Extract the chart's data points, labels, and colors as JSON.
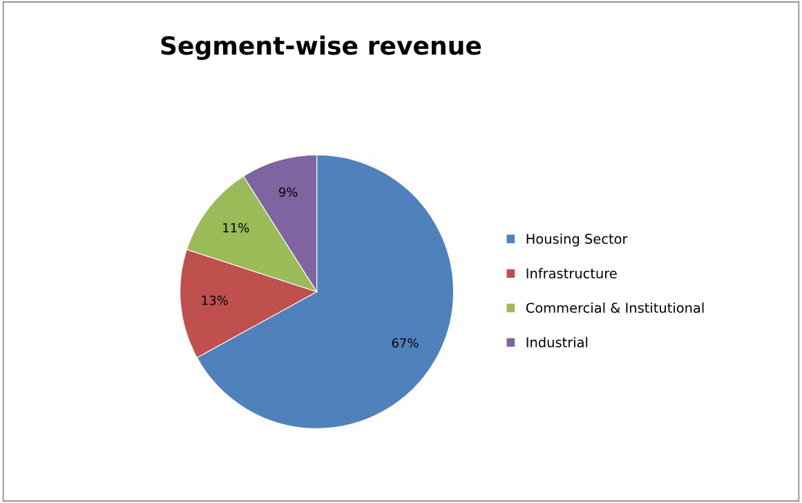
{
  "chart_data": {
    "type": "pie",
    "title": "Segment-wise revenue",
    "categories": [
      "Housing Sector",
      "Infrastructure",
      "Commercial & Institutional",
      "Industrial"
    ],
    "values": [
      67,
      13,
      11,
      9
    ],
    "value_labels": [
      "67%",
      "13%",
      "11%",
      "9%"
    ],
    "colors": [
      "#4f81bd",
      "#c0504d",
      "#9bbb59",
      "#8064a2"
    ],
    "legend": "right"
  }
}
